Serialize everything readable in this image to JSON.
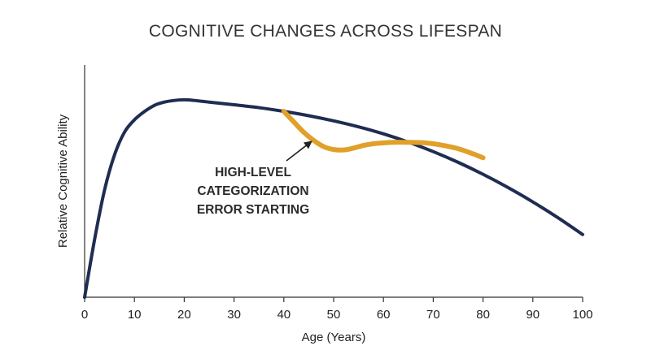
{
  "chart_data": {
    "type": "line",
    "title": "COGNITIVE CHANGES ACROSS LIFESPAN",
    "xlabel": "Age (Years)",
    "ylabel": "Relative Cognitive Ability",
    "xlim": [
      0,
      100
    ],
    "ylim": [
      0,
      100
    ],
    "xticks": [
      0,
      10,
      20,
      30,
      40,
      50,
      60,
      70,
      80,
      90,
      100
    ],
    "y_tick_labels_shown": false,
    "grid": false,
    "series": [
      {
        "color": "#1f2d52",
        "x": [
          0,
          2,
          4,
          6,
          8,
          10,
          12,
          14,
          16,
          18,
          20,
          22,
          25,
          30,
          35,
          40,
          45,
          50,
          55,
          60,
          65,
          70,
          75,
          80,
          85,
          90,
          95,
          100
        ],
        "y": [
          0,
          28,
          52,
          69,
          80,
          86,
          90,
          93,
          94.6,
          95.4,
          95.7,
          95.4,
          94.6,
          93.3,
          91.9,
          90.1,
          88,
          85.5,
          82.6,
          79.2,
          75.2,
          70.6,
          65.4,
          59.6,
          53.2,
          46.2,
          38.6,
          30.4
        ]
      },
      {
        "color": "#e0a02a",
        "x": [
          40,
          42,
          44,
          46,
          48,
          50,
          52,
          54,
          56,
          58,
          60,
          62,
          65,
          68,
          70,
          72,
          75,
          78,
          80
        ],
        "y": [
          90.1,
          85,
          80,
          76,
          73,
          71.6,
          71.4,
          72.3,
          73.6,
          74.4,
          74.8,
          75.1,
          75.1,
          74.9,
          74.4,
          73.6,
          72,
          69.5,
          67.6
        ]
      }
    ],
    "annotations": [
      {
        "lines": [
          "HIGH-LEVEL",
          "CATEGORIZATION",
          "ERROR STARTING"
        ],
        "arrow_to": {
          "x": 45.5,
          "y": 76.7
        }
      }
    ]
  }
}
